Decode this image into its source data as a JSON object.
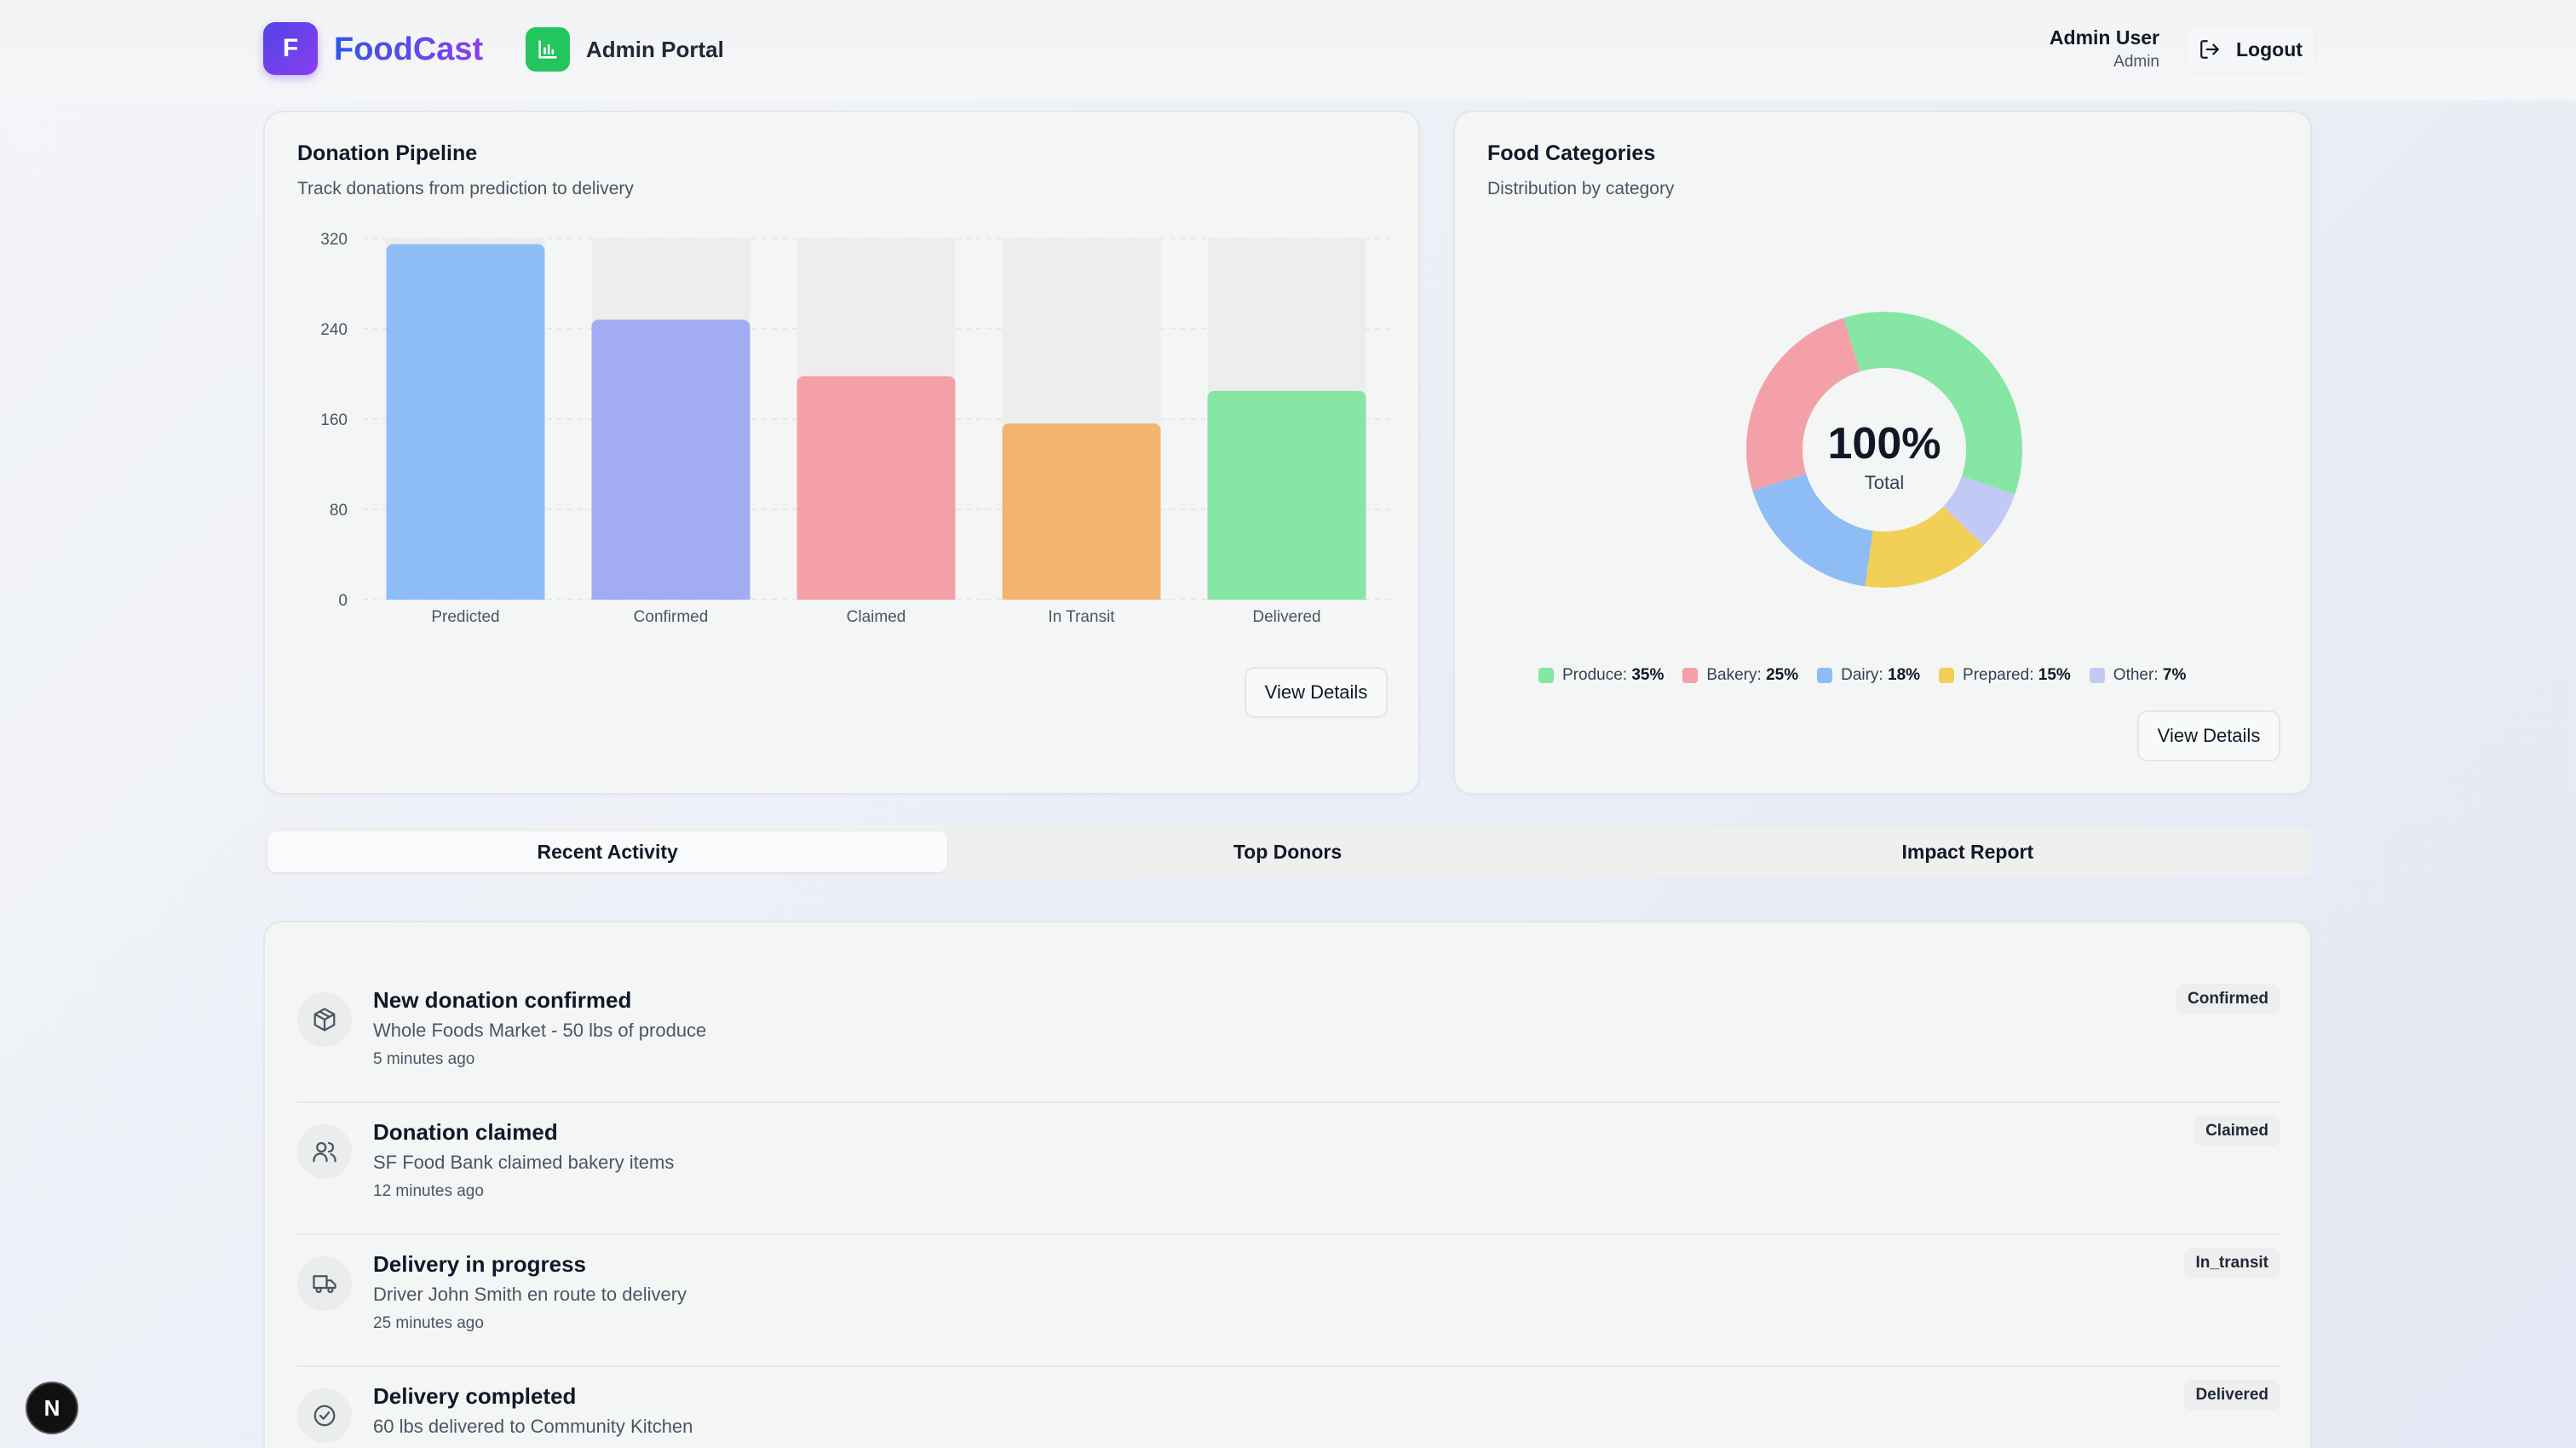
{
  "header": {
    "logo_letter": "F",
    "brand": "FoodCast",
    "portal_label": "Admin Portal",
    "user_name": "Admin User",
    "user_role": "Admin",
    "logout_label": "Logout"
  },
  "pipeline": {
    "title": "Donation Pipeline",
    "subtitle": "Track donations from prediction to delivery",
    "view_details_label": "View Details"
  },
  "categories_card": {
    "title": "Food Categories",
    "subtitle": "Distribution by category",
    "center_value": "100%",
    "center_label": "Total",
    "view_details_label": "View Details"
  },
  "tabs": [
    {
      "label": "Recent Activity",
      "active": true
    },
    {
      "label": "Top Donors",
      "active": false
    },
    {
      "label": "Impact Report",
      "active": false
    }
  ],
  "activities": [
    {
      "icon": "package-icon",
      "title": "New donation confirmed",
      "desc": "Whole Foods Market - 50 lbs of produce",
      "time": "5 minutes ago",
      "badge": "Confirmed"
    },
    {
      "icon": "users-icon",
      "title": "Donation claimed",
      "desc": "SF Food Bank claimed bakery items",
      "time": "12 minutes ago",
      "badge": "Claimed"
    },
    {
      "icon": "truck-icon",
      "title": "Delivery in progress",
      "desc": "Driver John Smith en route to delivery",
      "time": "25 minutes ago",
      "badge": "In_transit"
    },
    {
      "icon": "check-circle-icon",
      "title": "Delivery completed",
      "desc": "60 lbs delivered to Community Kitchen",
      "time": "",
      "badge": "Delivered"
    }
  ],
  "chart_data": [
    {
      "type": "bar",
      "title": "Donation Pipeline",
      "subtitle": "Track donations from prediction to delivery",
      "categories": [
        "Predicted",
        "Confirmed",
        "Claimed",
        "In Transit",
        "Delivered"
      ],
      "values": [
        315,
        248,
        198,
        156,
        185
      ],
      "colors": [
        "#8dbdf4",
        "#a1acf2",
        "#f4a0a8",
        "#f2b46f",
        "#86e6a4"
      ],
      "background_bar_color": "#ededee",
      "ylim": [
        0,
        320
      ],
      "yticks": [
        "0",
        "80",
        "160",
        "240",
        "320"
      ],
      "grid": true
    },
    {
      "type": "pie",
      "title": "Food Categories",
      "subtitle": "Distribution by category",
      "donut": true,
      "labels": [
        "Produce",
        "Other",
        "Prepared",
        "Dairy",
        "Bakery"
      ],
      "values": [
        35,
        7,
        15,
        18,
        25
      ],
      "value_labels": [
        "35%",
        "7%",
        "15%",
        "18%",
        "25%"
      ],
      "colors": [
        "#86e6a4",
        "#c3c9f5",
        "#f2cf56",
        "#8dbdf4",
        "#f4a0a8"
      ],
      "legend_order": [
        0,
        4,
        3,
        2,
        1
      ],
      "legend_placement": "bottom"
    }
  ]
}
